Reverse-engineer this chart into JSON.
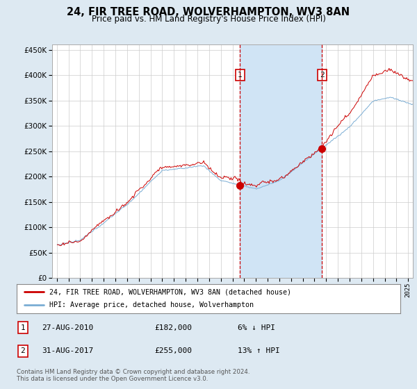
{
  "title": "24, FIR TREE ROAD, WOLVERHAMPTON, WV3 8AN",
  "subtitle": "Price paid vs. HM Land Registry's House Price Index (HPI)",
  "legend_line1": "24, FIR TREE ROAD, WOLVERHAMPTON, WV3 8AN (detached house)",
  "legend_line2": "HPI: Average price, detached house, Wolverhampton",
  "footnote": "Contains HM Land Registry data © Crown copyright and database right 2024.\nThis data is licensed under the Open Government Licence v3.0.",
  "table_row1_date": "27-AUG-2010",
  "table_row1_price": "£182,000",
  "table_row1_hpi": "6% ↓ HPI",
  "table_row2_date": "31-AUG-2017",
  "table_row2_price": "£255,000",
  "table_row2_hpi": "13% ↑ HPI",
  "sale1_year": 2010.65,
  "sale1_price": 182000,
  "sale2_year": 2017.65,
  "sale2_price": 255000,
  "hpi_line_color": "#7aadd4",
  "price_line_color": "#cc0000",
  "sale_marker_color": "#cc0000",
  "background_color": "#dde9f2",
  "plot_bg_color": "#ffffff",
  "shade_color": "#d0e4f5",
  "vline_color": "#cc0000",
  "ylim": [
    0,
    460000
  ],
  "yticks": [
    0,
    50000,
    100000,
    150000,
    200000,
    250000,
    300000,
    350000,
    400000,
    450000
  ],
  "xlim_start": 1994.6,
  "xlim_end": 2025.4
}
